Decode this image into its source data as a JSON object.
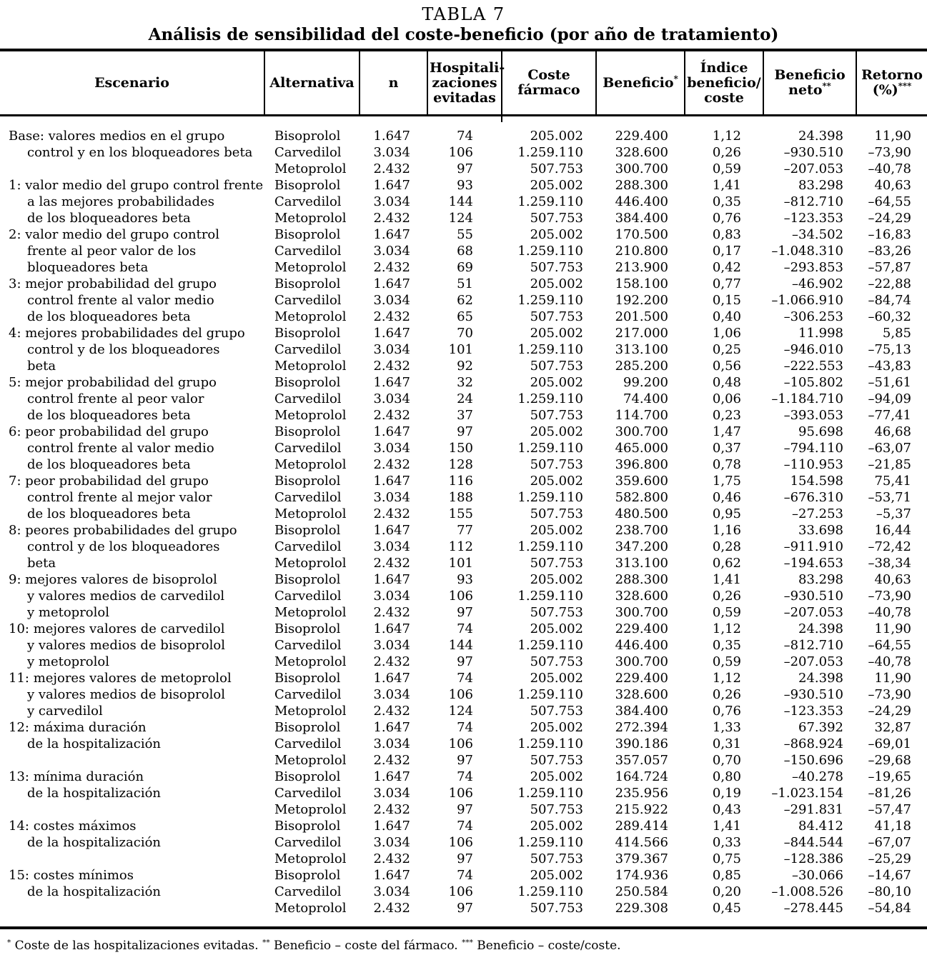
{
  "title": "TABLA 7",
  "subtitle": "Análisis de sensibilidad del coste-beneficio (por año de tratamiento)",
  "columns": [
    {
      "id": "escenario",
      "label_lines": [
        "Escenario"
      ],
      "sup": ""
    },
    {
      "id": "alternativa",
      "label_lines": [
        "Alternativa"
      ],
      "sup": ""
    },
    {
      "id": "n",
      "label_lines": [
        "n"
      ],
      "sup": ""
    },
    {
      "id": "hosp",
      "label_lines": [
        "Hospitali-",
        "zaciones",
        "evitadas"
      ],
      "sup": ""
    },
    {
      "id": "coste",
      "label_lines": [
        "Coste",
        "fármaco"
      ],
      "sup": ""
    },
    {
      "id": "beneficio",
      "label_lines": [
        "Beneficio"
      ],
      "sup": "*"
    },
    {
      "id": "indice",
      "label_lines": [
        "Índice",
        "beneficio/",
        "coste"
      ],
      "sup": ""
    },
    {
      "id": "neto",
      "label_lines": [
        "Beneficio",
        "neto"
      ],
      "sup": "**"
    },
    {
      "id": "retorno",
      "label_lines": [
        "Retorno",
        "(%)"
      ],
      "sup": "***"
    }
  ],
  "scenarios": [
    {
      "label_lines": [
        "Base: valores medios en el grupo",
        "control y en los bloqueadores beta",
        ""
      ],
      "rows": [
        {
          "alternativa": "Bisoprolol",
          "n": "1.647",
          "hosp": "74",
          "coste": "205.002",
          "beneficio": "229.400",
          "indice": "1,12",
          "neto": "24.398",
          "retorno": "11,90"
        },
        {
          "alternativa": "Carvedilol",
          "n": "3.034",
          "hosp": "106",
          "coste": "1.259.110",
          "beneficio": "328.600",
          "indice": "0,26",
          "neto": "–930.510",
          "retorno": "–73,90"
        },
        {
          "alternativa": "Metoprolol",
          "n": "2.432",
          "hosp": "97",
          "coste": "507.753",
          "beneficio": "300.700",
          "indice": "0,59",
          "neto": "–207.053",
          "retorno": "–40,78"
        }
      ]
    },
    {
      "label_lines": [
        "1: valor medio del grupo control frente",
        "a las mejores probabilidades",
        "de los bloqueadores beta"
      ],
      "rows": [
        {
          "alternativa": "Bisoprolol",
          "n": "1.647",
          "hosp": "93",
          "coste": "205.002",
          "beneficio": "288.300",
          "indice": "1,41",
          "neto": "83.298",
          "retorno": "40,63"
        },
        {
          "alternativa": "Carvedilol",
          "n": "3.034",
          "hosp": "144",
          "coste": "1.259.110",
          "beneficio": "446.400",
          "indice": "0,35",
          "neto": "–812.710",
          "retorno": "–64,55"
        },
        {
          "alternativa": "Metoprolol",
          "n": "2.432",
          "hosp": "124",
          "coste": "507.753",
          "beneficio": "384.400",
          "indice": "0,76",
          "neto": "–123.353",
          "retorno": "–24,29"
        }
      ]
    },
    {
      "label_lines": [
        "2: valor medio del grupo control",
        "frente al peor valor de los",
        "bloqueadores beta"
      ],
      "rows": [
        {
          "alternativa": "Bisoprolol",
          "n": "1.647",
          "hosp": "55",
          "coste": "205.002",
          "beneficio": "170.500",
          "indice": "0,83",
          "neto": "–34.502",
          "retorno": "–16,83"
        },
        {
          "alternativa": "Carvedilol",
          "n": "3.034",
          "hosp": "68",
          "coste": "1.259.110",
          "beneficio": "210.800",
          "indice": "0,17",
          "neto": "–1.048.310",
          "retorno": "–83,26"
        },
        {
          "alternativa": "Metoprolol",
          "n": "2.432",
          "hosp": "69",
          "coste": "507.753",
          "beneficio": "213.900",
          "indice": "0,42",
          "neto": "–293.853",
          "retorno": "–57,87"
        }
      ]
    },
    {
      "label_lines": [
        "3: mejor probabilidad del grupo",
        "control frente al valor medio",
        "de los bloqueadores beta"
      ],
      "rows": [
        {
          "alternativa": "Bisoprolol",
          "n": "1.647",
          "hosp": "51",
          "coste": "205.002",
          "beneficio": "158.100",
          "indice": "0,77",
          "neto": "–46.902",
          "retorno": "–22,88"
        },
        {
          "alternativa": "Carvedilol",
          "n": "3.034",
          "hosp": "62",
          "coste": "1.259.110",
          "beneficio": "192.200",
          "indice": "0,15",
          "neto": "–1.066.910",
          "retorno": "–84,74"
        },
        {
          "alternativa": "Metoprolol",
          "n": "2.432",
          "hosp": "65",
          "coste": "507.753",
          "beneficio": "201.500",
          "indice": "0,40",
          "neto": "–306.253",
          "retorno": "–60,32"
        }
      ]
    },
    {
      "label_lines": [
        "4: mejores probabilidades del grupo",
        "control y de los bloqueadores",
        "beta"
      ],
      "rows": [
        {
          "alternativa": "Bisoprolol",
          "n": "1.647",
          "hosp": "70",
          "coste": "205.002",
          "beneficio": "217.000",
          "indice": "1,06",
          "neto": "11.998",
          "retorno": "5,85"
        },
        {
          "alternativa": "Carvedilol",
          "n": "3.034",
          "hosp": "101",
          "coste": "1.259.110",
          "beneficio": "313.100",
          "indice": "0,25",
          "neto": "–946.010",
          "retorno": "–75,13"
        },
        {
          "alternativa": "Metoprolol",
          "n": "2.432",
          "hosp": "92",
          "coste": "507.753",
          "beneficio": "285.200",
          "indice": "0,56",
          "neto": "–222.553",
          "retorno": "–43,83"
        }
      ]
    },
    {
      "label_lines": [
        "5: mejor probabilidad del grupo",
        "control frente al peor valor",
        "de los bloqueadores beta"
      ],
      "rows": [
        {
          "alternativa": "Bisoprolol",
          "n": "1.647",
          "hosp": "32",
          "coste": "205.002",
          "beneficio": "99.200",
          "indice": "0,48",
          "neto": "–105.802",
          "retorno": "–51,61"
        },
        {
          "alternativa": "Carvedilol",
          "n": "3.034",
          "hosp": "24",
          "coste": "1.259.110",
          "beneficio": "74.400",
          "indice": "0,06",
          "neto": "–1.184.710",
          "retorno": "–94,09"
        },
        {
          "alternativa": "Metoprolol",
          "n": "2.432",
          "hosp": "37",
          "coste": "507.753",
          "beneficio": "114.700",
          "indice": "0,23",
          "neto": "–393.053",
          "retorno": "–77,41"
        }
      ]
    },
    {
      "label_lines": [
        "6: peor probabilidad del grupo",
        "control frente al valor medio",
        "de los bloqueadores beta"
      ],
      "rows": [
        {
          "alternativa": "Bisoprolol",
          "n": "1.647",
          "hosp": "97",
          "coste": "205.002",
          "beneficio": "300.700",
          "indice": "1,47",
          "neto": "95.698",
          "retorno": "46,68"
        },
        {
          "alternativa": "Carvedilol",
          "n": "3.034",
          "hosp": "150",
          "coste": "1.259.110",
          "beneficio": "465.000",
          "indice": "0,37",
          "neto": "–794.110",
          "retorno": "–63,07"
        },
        {
          "alternativa": "Metoprolol",
          "n": "2.432",
          "hosp": "128",
          "coste": "507.753",
          "beneficio": "396.800",
          "indice": "0,78",
          "neto": "–110.953",
          "retorno": "–21,85"
        }
      ]
    },
    {
      "label_lines": [
        "7: peor probabilidad del grupo",
        "control frente al mejor valor",
        "de los bloqueadores beta"
      ],
      "rows": [
        {
          "alternativa": "Bisoprolol",
          "n": "1.647",
          "hosp": "116",
          "coste": "205.002",
          "beneficio": "359.600",
          "indice": "1,75",
          "neto": "154.598",
          "retorno": "75,41"
        },
        {
          "alternativa": "Carvedilol",
          "n": "3.034",
          "hosp": "188",
          "coste": "1.259.110",
          "beneficio": "582.800",
          "indice": "0,46",
          "neto": "–676.310",
          "retorno": "–53,71"
        },
        {
          "alternativa": "Metoprolol",
          "n": "2.432",
          "hosp": "155",
          "coste": "507.753",
          "beneficio": "480.500",
          "indice": "0,95",
          "neto": "–27.253",
          "retorno": "–5,37"
        }
      ]
    },
    {
      "label_lines": [
        "8: peores probabilidades del grupo",
        "control y de los bloqueadores",
        "beta"
      ],
      "rows": [
        {
          "alternativa": "Bisoprolol",
          "n": "1.647",
          "hosp": "77",
          "coste": "205.002",
          "beneficio": "238.700",
          "indice": "1,16",
          "neto": "33.698",
          "retorno": "16,44"
        },
        {
          "alternativa": "Carvedilol",
          "n": "3.034",
          "hosp": "112",
          "coste": "1.259.110",
          "beneficio": "347.200",
          "indice": "0,28",
          "neto": "–911.910",
          "retorno": "–72,42"
        },
        {
          "alternativa": "Metoprolol",
          "n": "2.432",
          "hosp": "101",
          "coste": "507.753",
          "beneficio": "313.100",
          "indice": "0,62",
          "neto": "–194.653",
          "retorno": "–38,34"
        }
      ]
    },
    {
      "label_lines": [
        "9: mejores valores de bisoprolol",
        "y valores medios de carvedilol",
        "y metoprolol"
      ],
      "rows": [
        {
          "alternativa": "Bisoprolol",
          "n": "1.647",
          "hosp": "93",
          "coste": "205.002",
          "beneficio": "288.300",
          "indice": "1,41",
          "neto": "83.298",
          "retorno": "40,63"
        },
        {
          "alternativa": "Carvedilol",
          "n": "3.034",
          "hosp": "106",
          "coste": "1.259.110",
          "beneficio": "328.600",
          "indice": "0,26",
          "neto": "–930.510",
          "retorno": "–73,90"
        },
        {
          "alternativa": "Metoprolol",
          "n": "2.432",
          "hosp": "97",
          "coste": "507.753",
          "beneficio": "300.700",
          "indice": "0,59",
          "neto": "–207.053",
          "retorno": "–40,78"
        }
      ]
    },
    {
      "label_lines": [
        "10: mejores valores de carvedilol",
        "y valores medios de bisoprolol",
        "y metoprolol"
      ],
      "rows": [
        {
          "alternativa": "Bisoprolol",
          "n": "1.647",
          "hosp": "74",
          "coste": "205.002",
          "beneficio": "229.400",
          "indice": "1,12",
          "neto": "24.398",
          "retorno": "11,90"
        },
        {
          "alternativa": "Carvedilol",
          "n": "3.034",
          "hosp": "144",
          "coste": "1.259.110",
          "beneficio": "446.400",
          "indice": "0,35",
          "neto": "–812.710",
          "retorno": "–64,55"
        },
        {
          "alternativa": "Metoprolol",
          "n": "2.432",
          "hosp": "97",
          "coste": "507.753",
          "beneficio": "300.700",
          "indice": "0,59",
          "neto": "–207.053",
          "retorno": "–40,78"
        }
      ]
    },
    {
      "label_lines": [
        "11: mejores valores de metoprolol",
        "y valores medios de bisoprolol",
        "y carvedilol"
      ],
      "rows": [
        {
          "alternativa": "Bisoprolol",
          "n": "1.647",
          "hosp": "74",
          "coste": "205.002",
          "beneficio": "229.400",
          "indice": "1,12",
          "neto": "24.398",
          "retorno": "11,90"
        },
        {
          "alternativa": "Carvedilol",
          "n": "3.034",
          "hosp": "106",
          "coste": "1.259.110",
          "beneficio": "328.600",
          "indice": "0,26",
          "neto": "–930.510",
          "retorno": "–73,90"
        },
        {
          "alternativa": "Metoprolol",
          "n": "2.432",
          "hosp": "124",
          "coste": "507.753",
          "beneficio": "384.400",
          "indice": "0,76",
          "neto": "–123.353",
          "retorno": "–24,29"
        }
      ]
    },
    {
      "label_lines": [
        "12: máxima duración",
        "de la hospitalización",
        ""
      ],
      "rows": [
        {
          "alternativa": "Bisoprolol",
          "n": "1.647",
          "hosp": "74",
          "coste": "205.002",
          "beneficio": "272.394",
          "indice": "1,33",
          "neto": "67.392",
          "retorno": "32,87"
        },
        {
          "alternativa": "Carvedilol",
          "n": "3.034",
          "hosp": "106",
          "coste": "1.259.110",
          "beneficio": "390.186",
          "indice": "0,31",
          "neto": "–868.924",
          "retorno": "–69,01"
        },
        {
          "alternativa": "Metoprolol",
          "n": "2.432",
          "hosp": "97",
          "coste": "507.753",
          "beneficio": "357.057",
          "indice": "0,70",
          "neto": "–150.696",
          "retorno": "–29,68"
        }
      ]
    },
    {
      "label_lines": [
        "13: mínima duración",
        "de la hospitalización",
        ""
      ],
      "rows": [
        {
          "alternativa": "Bisoprolol",
          "n": "1.647",
          "hosp": "74",
          "coste": "205.002",
          "beneficio": "164.724",
          "indice": "0,80",
          "neto": "–40.278",
          "retorno": "–19,65"
        },
        {
          "alternativa": "Carvedilol",
          "n": "3.034",
          "hosp": "106",
          "coste": "1.259.110",
          "beneficio": "235.956",
          "indice": "0,19",
          "neto": "–1.023.154",
          "retorno": "–81,26"
        },
        {
          "alternativa": "Metoprolol",
          "n": "2.432",
          "hosp": "97",
          "coste": "507.753",
          "beneficio": "215.922",
          "indice": "0,43",
          "neto": "–291.831",
          "retorno": "–57,47"
        }
      ]
    },
    {
      "label_lines": [
        "14: costes máximos",
        "de la hospitalización",
        ""
      ],
      "rows": [
        {
          "alternativa": "Bisoprolol",
          "n": "1.647",
          "hosp": "74",
          "coste": "205.002",
          "beneficio": "289.414",
          "indice": "1,41",
          "neto": "84.412",
          "retorno": "41,18"
        },
        {
          "alternativa": "Carvedilol",
          "n": "3.034",
          "hosp": "106",
          "coste": "1.259.110",
          "beneficio": "414.566",
          "indice": "0,33",
          "neto": "–844.544",
          "retorno": "–67,07"
        },
        {
          "alternativa": "Metoprolol",
          "n": "2.432",
          "hosp": "97",
          "coste": "507.753",
          "beneficio": "379.367",
          "indice": "0,75",
          "neto": "–128.386",
          "retorno": "–25,29"
        }
      ]
    },
    {
      "label_lines": [
        "15: costes mínimos",
        "de la hospitalización",
        ""
      ],
      "rows": [
        {
          "alternativa": "Bisoprolol",
          "n": "1.647",
          "hosp": "74",
          "coste": "205.002",
          "beneficio": "174.936",
          "indice": "0,85",
          "neto": "–30.066",
          "retorno": "–14,67"
        },
        {
          "alternativa": "Carvedilol",
          "n": "3.034",
          "hosp": "106",
          "coste": "1.259.110",
          "beneficio": "250.584",
          "indice": "0,20",
          "neto": "–1.008.526",
          "retorno": "–80,10"
        },
        {
          "alternativa": "Metoprolol",
          "n": "2.432",
          "hosp": "97",
          "coste": "507.753",
          "beneficio": "229.308",
          "indice": "0,45",
          "neto": "–278.445",
          "retorno": "–54,84"
        }
      ]
    }
  ],
  "footnote": {
    "parts": [
      {
        "sup": "*",
        "text": "Coste de las hospitalizaciones evitadas."
      },
      {
        "sup": "**",
        "text": "Beneficio – coste del fármaco."
      },
      {
        "sup": "***",
        "text": "Beneficio – coste/coste."
      }
    ]
  }
}
